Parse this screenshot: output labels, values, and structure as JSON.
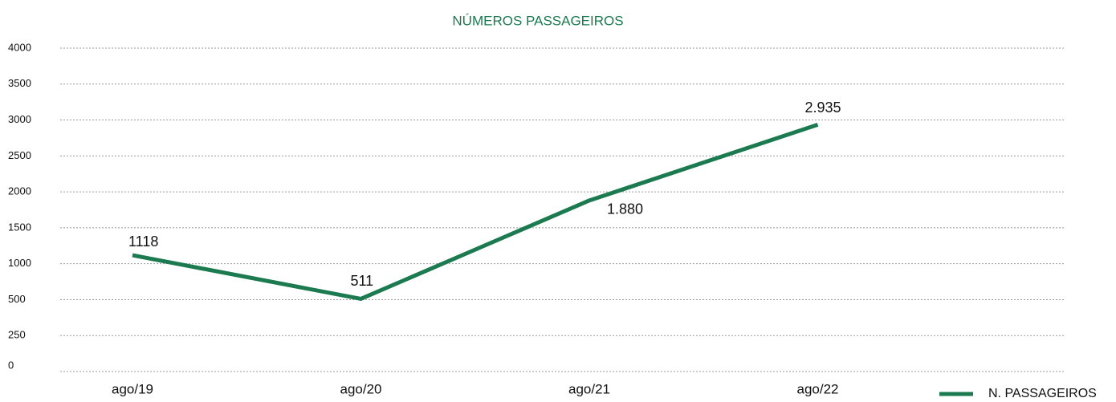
{
  "chart_data": {
    "type": "line",
    "title": "NÚMEROS PASSAGEIROS",
    "categories": [
      "ago/19",
      "ago/20",
      "ago/21",
      "ago/22"
    ],
    "series": [
      {
        "name": "N. PASSAGEIROS",
        "color": "#1b7a4f",
        "values": [
          1118,
          511,
          1880,
          2935
        ],
        "value_labels": [
          "1118",
          "511",
          "1.880",
          "2.935"
        ]
      }
    ],
    "ylim": [
      0,
      4000
    ],
    "yticks": [
      0,
      250,
      500,
      1000,
      1500,
      2000,
      2500,
      3000,
      3500,
      4000
    ],
    "grid": true,
    "legend": "bottom-right"
  }
}
